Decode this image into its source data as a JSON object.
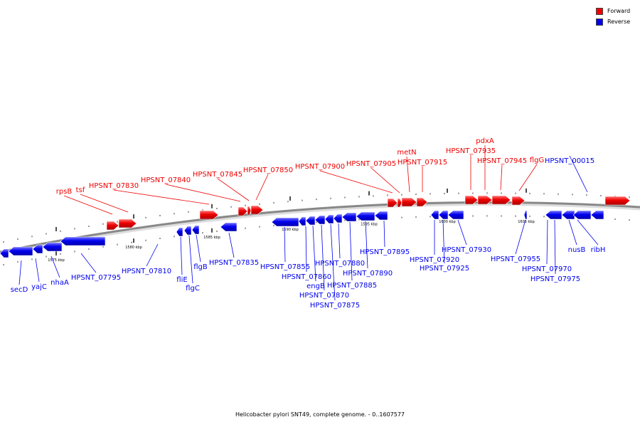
{
  "legend": {
    "forward_label": "Forward",
    "reverse_label": "Reverse",
    "forward_color": "#ee0000",
    "reverse_color": "#0000ee"
  },
  "caption": "Helicobacter pylori SNT49, complete genome. - 0..1607577",
  "scale": [
    {
      "label": "1575 kbp",
      "kb": 1575
    },
    {
      "label": "1580 kbp",
      "kb": 1580
    },
    {
      "label": "1585 kbp",
      "kb": 1585
    },
    {
      "label": "1590 kbp",
      "kb": 1590
    },
    {
      "label": "1595 kbp",
      "kb": 1595
    },
    {
      "label": "1600 kbp",
      "kb": 1600
    },
    {
      "label": "1605 kbp",
      "kb": 1605
    }
  ],
  "genes": [
    {
      "name": "secD",
      "strand": "reverse"
    },
    {
      "name": "yajC",
      "strand": "reverse"
    },
    {
      "name": "nhaA",
      "strand": "reverse"
    },
    {
      "name": "HPSNT_07795",
      "strand": "reverse"
    },
    {
      "name": "rpsB",
      "strand": "forward"
    },
    {
      "name": "tsf",
      "strand": "forward"
    },
    {
      "name": "HPSNT_07810",
      "strand": "reverse"
    },
    {
      "name": "fliE",
      "strand": "reverse"
    },
    {
      "name": "flgC",
      "strand": "reverse"
    },
    {
      "name": "flgB",
      "strand": "reverse"
    },
    {
      "name": "HPSNT_07830",
      "strand": "forward"
    },
    {
      "name": "HPSNT_07835",
      "strand": "reverse"
    },
    {
      "name": "HPSNT_07840",
      "strand": "forward"
    },
    {
      "name": "HPSNT_07845",
      "strand": "forward"
    },
    {
      "name": "HPSNT_07850",
      "strand": "forward"
    },
    {
      "name": "HPSNT_07855",
      "strand": "reverse"
    },
    {
      "name": "HPSNT_07860",
      "strand": "reverse"
    },
    {
      "name": "engB",
      "strand": "reverse"
    },
    {
      "name": "HPSNT_07870",
      "strand": "reverse"
    },
    {
      "name": "HPSNT_07875",
      "strand": "reverse"
    },
    {
      "name": "HPSNT_07880",
      "strand": "reverse"
    },
    {
      "name": "HPSNT_07885",
      "strand": "reverse"
    },
    {
      "name": "HPSNT_07890",
      "strand": "reverse"
    },
    {
      "name": "HPSNT_07895",
      "strand": "reverse"
    },
    {
      "name": "HPSNT_07900",
      "strand": "forward"
    },
    {
      "name": "HPSNT_07905",
      "strand": "forward"
    },
    {
      "name": "metN",
      "strand": "forward"
    },
    {
      "name": "HPSNT_07915",
      "strand": "forward"
    },
    {
      "name": "HPSNT_07920",
      "strand": "reverse"
    },
    {
      "name": "HPSNT_07925",
      "strand": "reverse"
    },
    {
      "name": "HPSNT_07930",
      "strand": "reverse"
    },
    {
      "name": "HPSNT_07935",
      "strand": "forward"
    },
    {
      "name": "pdxA",
      "strand": "forward"
    },
    {
      "name": "HPSNT_07945",
      "strand": "forward"
    },
    {
      "name": "flgG",
      "strand": "forward"
    },
    {
      "name": "HPSNT_07955",
      "strand": "reverse"
    },
    {
      "name": "HPSNT_07970",
      "strand": "reverse"
    },
    {
      "name": "HPSNT_07975",
      "strand": "reverse"
    },
    {
      "name": "HPSNT_00015",
      "strand": "reverse"
    },
    {
      "name": "nusB",
      "strand": "reverse"
    },
    {
      "name": "ribH",
      "strand": "reverse"
    }
  ]
}
